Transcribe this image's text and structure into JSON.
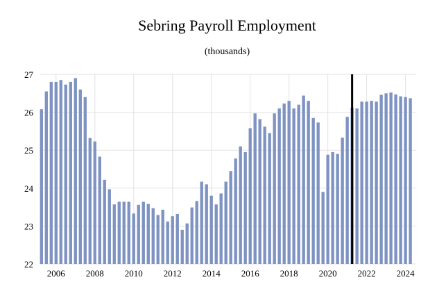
{
  "chart_data": {
    "type": "bar",
    "title": "Sebring Payroll Employment",
    "subtitle": "(thousands)",
    "xlabel": "",
    "ylabel": "",
    "ylim": [
      22,
      27
    ],
    "yticks": [
      22,
      23,
      24,
      25,
      26,
      27
    ],
    "xticks": [
      2006,
      2008,
      2010,
      2012,
      2014,
      2016,
      2018,
      2020,
      2022,
      2024
    ],
    "x_start": 2005.25,
    "x_step": 0.25,
    "bar_color": "#7e93c2",
    "marker_line": {
      "x": 2021.25,
      "color": "#000000"
    },
    "grid": true,
    "values": [
      26.08,
      26.55,
      26.8,
      26.8,
      26.85,
      26.73,
      26.8,
      26.9,
      26.6,
      26.4,
      25.32,
      25.23,
      24.83,
      24.22,
      23.97,
      23.57,
      23.64,
      23.64,
      23.64,
      23.33,
      23.56,
      23.64,
      23.58,
      23.47,
      23.29,
      23.43,
      23.12,
      23.26,
      23.32,
      22.9,
      23.07,
      23.49,
      23.66,
      24.17,
      24.1,
      23.8,
      23.57,
      23.86,
      24.17,
      24.45,
      24.78,
      25.1,
      24.95,
      25.58,
      25.97,
      25.82,
      25.62,
      25.45,
      25.97,
      26.1,
      26.23,
      26.3,
      26.1,
      26.2,
      26.44,
      26.3,
      25.85,
      25.73,
      23.9,
      24.88,
      24.95,
      24.9,
      25.33,
      25.88,
      26.12,
      26.1,
      26.28,
      26.28,
      26.3,
      26.28,
      26.46,
      26.5,
      26.52,
      26.47,
      26.42,
      26.4,
      26.37
    ]
  }
}
